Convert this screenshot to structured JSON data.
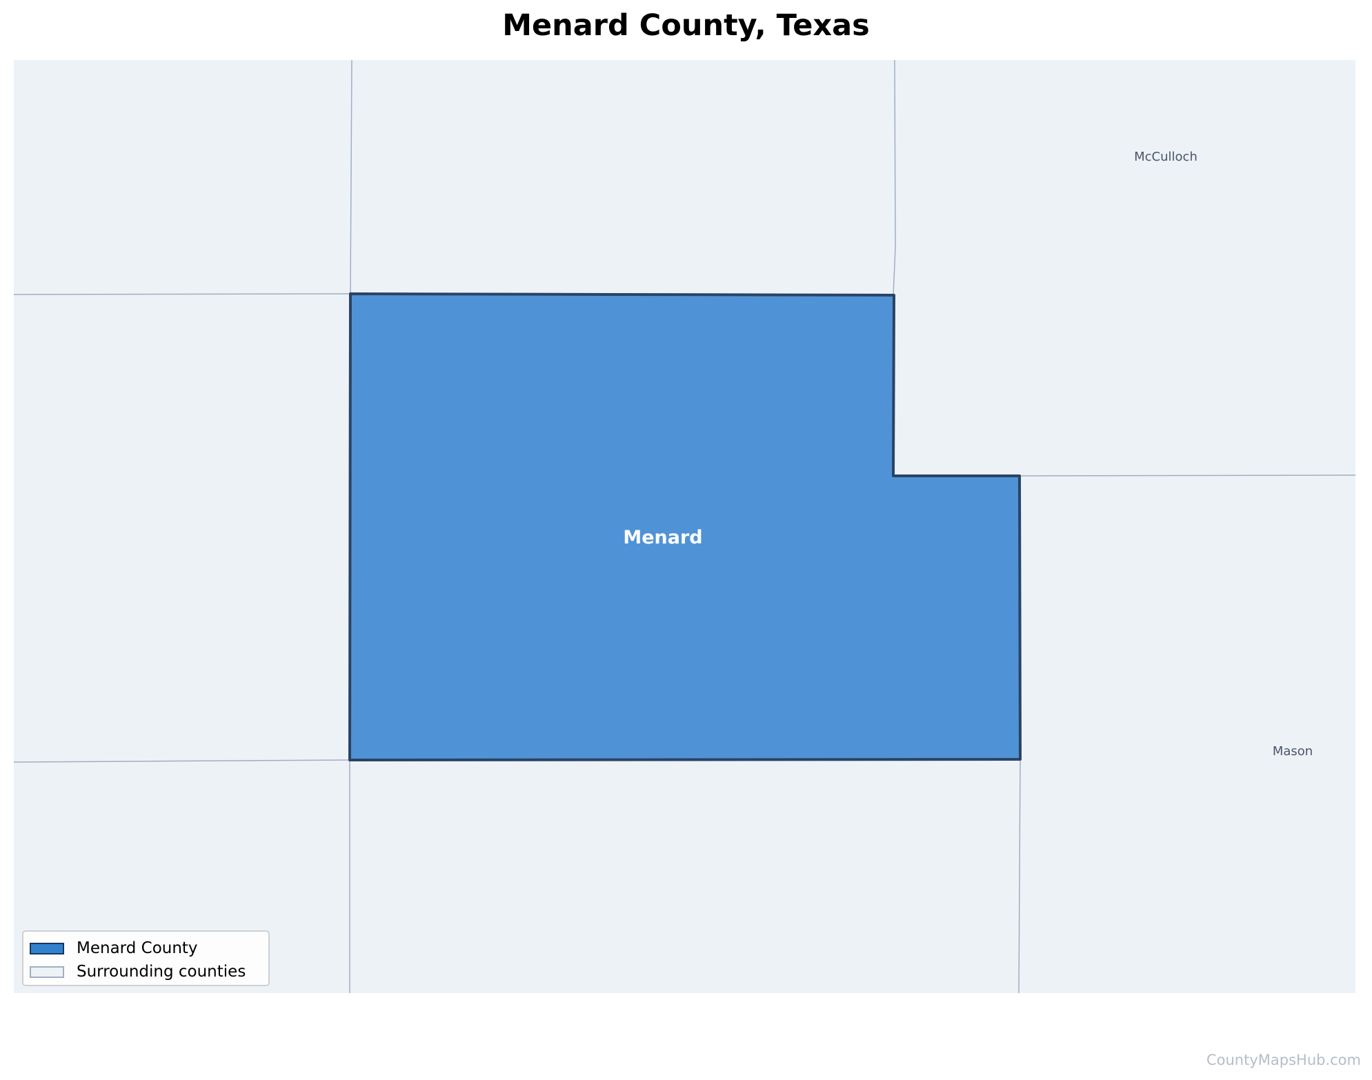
{
  "title": "Menard County, Texas",
  "colors": {
    "background_area": "#edf2f7",
    "neighbor_border": "#a0aec0",
    "highlight_fill": "#4f93d6",
    "highlight_border": "#2a4365",
    "neighbor_label": "#4a5568",
    "main_label": "#ffffff",
    "watermark": "#b5bdc9"
  },
  "counties": {
    "highlighted": {
      "name": "Menard"
    },
    "neighbors": [
      {
        "name": "McCulloch"
      },
      {
        "name": "Mason"
      }
    ]
  },
  "legend": {
    "items": [
      {
        "label": "Menard County",
        "swatch": "highlight"
      },
      {
        "label": "Surrounding counties",
        "swatch": "neighbor"
      }
    ]
  },
  "watermark": "CountyMapsHub.com"
}
